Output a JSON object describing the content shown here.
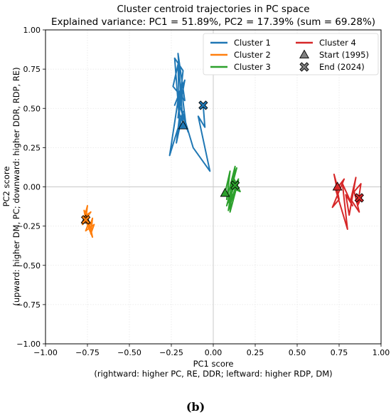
{
  "chart_data": {
    "type": "line",
    "title": "Cluster centroid trajectories in PC space",
    "subtitle": "Explained variance: PC1 = 51.89%, PC2 = 17.39% (sum = 69.28%)",
    "xlabel": "PC1 score",
    "xlabel2": "(rightward: higher PC, RE, DDR; leftward: higher RDP, DM)",
    "ylabel": "PC2 score",
    "ylabel2": "(upward: higher DM, PC; downward: higher DDR, RDP, RE)",
    "xlim": [
      -1.0,
      1.0
    ],
    "ylim": [
      -1.0,
      1.0
    ],
    "xticks": [
      "−1.00",
      "−0.75",
      "−0.50",
      "−0.25",
      "0.00",
      "0.25",
      "0.50",
      "0.75",
      "1.00"
    ],
    "yticks": [
      "−1.00",
      "−0.75",
      "−0.50",
      "−0.25",
      "0.00",
      "0.25",
      "0.50",
      "0.75",
      "1.00"
    ],
    "xtick_values": [
      -1.0,
      -0.75,
      -0.5,
      -0.25,
      0.0,
      0.25,
      0.5,
      0.75,
      1.0
    ],
    "ytick_values": [
      -1.0,
      -0.75,
      -0.5,
      -0.25,
      0.0,
      0.25,
      0.5,
      0.75,
      1.0
    ],
    "grid": true,
    "legend_position": "top-right",
    "series": [
      {
        "name": "Cluster 1",
        "color": "#1f77b4",
        "x": [
          -0.18,
          -0.21,
          -0.17,
          -0.24,
          -0.21,
          -0.2,
          -0.23,
          -0.18,
          -0.21,
          -0.17,
          -0.23,
          -0.19,
          -0.16,
          -0.2,
          -0.22,
          -0.18,
          -0.26,
          -0.21,
          -0.15,
          -0.19,
          -0.12,
          -0.02,
          -0.09,
          -0.05,
          -0.06
        ],
        "y": [
          0.39,
          0.85,
          0.55,
          0.64,
          0.78,
          0.4,
          0.82,
          0.74,
          0.44,
          0.68,
          0.52,
          0.63,
          0.37,
          0.46,
          0.28,
          0.48,
          0.2,
          0.55,
          0.35,
          0.5,
          0.25,
          0.1,
          0.45,
          0.38,
          0.52
        ]
      },
      {
        "name": "Cluster 2",
        "color": "#ff7f0e",
        "x": [
          -0.76,
          -0.75,
          -0.78,
          -0.73,
          -0.77,
          -0.72,
          -0.74,
          -0.76,
          -0.71,
          -0.73,
          -0.72,
          -0.74,
          -0.75,
          -0.77,
          -0.76
        ],
        "y": [
          -0.21,
          -0.12,
          -0.24,
          -0.16,
          -0.19,
          -0.32,
          -0.22,
          -0.28,
          -0.24,
          -0.3,
          -0.2,
          -0.26,
          -0.18,
          -0.15,
          -0.21
        ]
      },
      {
        "name": "Cluster 3",
        "color": "#2ca02c",
        "x": [
          0.07,
          0.1,
          0.08,
          0.13,
          0.09,
          0.15,
          0.11,
          0.08,
          0.14,
          0.1,
          0.16,
          0.12,
          0.09,
          0.13,
          0.07,
          0.11,
          0.15,
          0.1,
          0.12,
          0.13
        ],
        "y": [
          -0.04,
          0.1,
          -0.08,
          0.13,
          -0.15,
          0.05,
          -0.02,
          -0.12,
          0.12,
          0.0,
          -0.03,
          0.06,
          -0.1,
          0.02,
          -0.05,
          -0.07,
          0.04,
          -0.16,
          0.08,
          0.01
        ]
      },
      {
        "name": "Cluster 4",
        "color": "#d62728",
        "x": [
          0.74,
          0.72,
          0.75,
          0.71,
          0.78,
          0.73,
          0.8,
          0.77,
          0.83,
          0.79,
          0.81,
          0.85,
          0.82,
          0.87,
          0.84,
          0.88,
          0.86,
          0.89,
          0.85,
          0.87
        ],
        "y": [
          0.0,
          0.08,
          -0.08,
          -0.13,
          0.05,
          -0.02,
          -0.27,
          0.02,
          -0.12,
          -0.05,
          -0.18,
          0.06,
          -0.08,
          -0.16,
          -0.03,
          0.02,
          -0.12,
          -0.05,
          -0.09,
          -0.07
        ]
      }
    ],
    "markers": [
      {
        "name": "Start (1995)",
        "shape": "triangle"
      },
      {
        "name": "End (2024)",
        "shape": "x"
      }
    ],
    "caption": "(b)"
  }
}
